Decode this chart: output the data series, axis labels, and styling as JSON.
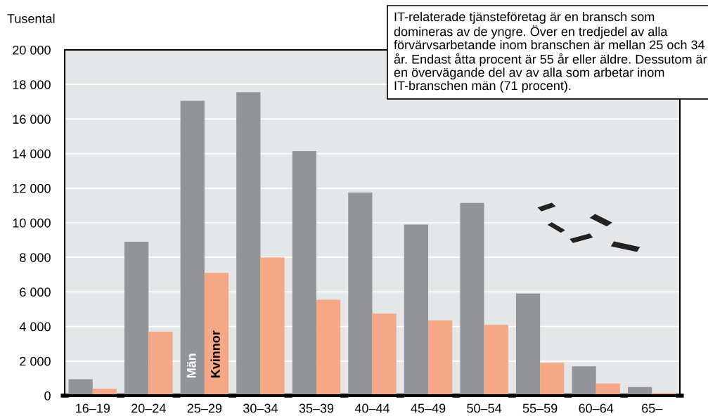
{
  "chart_data": {
    "type": "bar",
    "ylabel": "Tusental",
    "categories": [
      "16–19",
      "20–24",
      "25–29",
      "30–34",
      "35–39",
      "40–44",
      "45–49",
      "50–54",
      "55–59",
      "60–64",
      "65–"
    ],
    "series": [
      {
        "name": "Män",
        "color": "#939497",
        "values": [
          950,
          8900,
          17050,
          17550,
          14150,
          11750,
          9900,
          11150,
          5900,
          1700,
          500
        ]
      },
      {
        "name": "Kvinnor",
        "color": "#f6a886",
        "values": [
          400,
          3700,
          7100,
          8000,
          5550,
          4750,
          4350,
          4100,
          1900,
          700,
          150
        ]
      }
    ],
    "ylim": [
      0,
      20000
    ],
    "yticks": [
      {
        "value": 0,
        "label": "0"
      },
      {
        "value": 2000,
        "label": "2 000"
      },
      {
        "value": 4000,
        "label": "4 000"
      },
      {
        "value": 6000,
        "label": "6 000"
      },
      {
        "value": 8000,
        "label": "8 000"
      },
      {
        "value": 10000,
        "label": "10 000"
      },
      {
        "value": 12000,
        "label": "12 000"
      },
      {
        "value": 14000,
        "label": "14 000"
      },
      {
        "value": 16000,
        "label": "16 000"
      },
      {
        "value": 18000,
        "label": "18 000"
      },
      {
        "value": 20000,
        "label": "20 000"
      }
    ],
    "grid": "y",
    "annotations": [
      "IT-relaterade tjänsteföretag är en bransch som domineras av de yngre. Över en tredjedel av alla förvärvsarbetande inom branschen är mellan 25 och 34 år. Endast åtta procent är 55 år eller äldre. Dessutom är en övervägande del av av alla som arbetar inom IT-branschen män (71 procent)."
    ]
  }
}
